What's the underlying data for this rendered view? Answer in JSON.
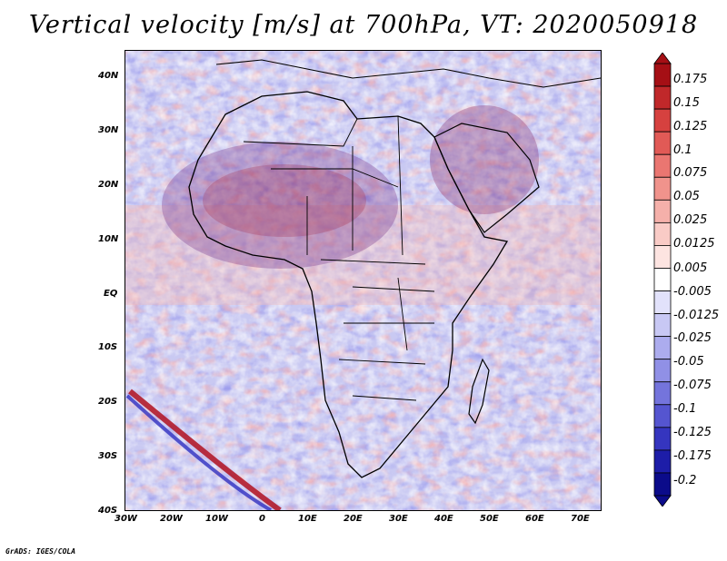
{
  "title": "Vertical velocity [m/s] at 700hPa, VT: 2020050918",
  "credit": "GrADS: IGES/COLA",
  "lat_labels": [
    "40N",
    "30N",
    "20N",
    "10N",
    "EQ",
    "10S",
    "20S",
    "30S",
    "40S"
  ],
  "lon_labels": [
    "30W",
    "20W",
    "10W",
    "0",
    "10E",
    "20E",
    "30E",
    "40E",
    "50E",
    "60E",
    "70E"
  ],
  "colorbar": {
    "labels": [
      "0.175",
      "0.15",
      "0.125",
      "0.1",
      "0.075",
      "0.05",
      "0.025",
      "0.0125",
      "0.005",
      "-0.005",
      "-0.0125",
      "-0.025",
      "-0.05",
      "-0.075",
      "-0.1",
      "-0.125",
      "-0.175",
      "-0.2"
    ],
    "colors": [
      "#a50f15",
      "#c0282a",
      "#d6413f",
      "#e15a56",
      "#ea7671",
      "#f0938c",
      "#f5b0aa",
      "#f9cbc6",
      "#fde4e1",
      "#ffffff",
      "#e2e2fb",
      "#c8c8f4",
      "#acacee",
      "#9090e6",
      "#7474dc",
      "#5555d0",
      "#3535bf",
      "#1d1da8",
      "#0b0b8a"
    ]
  },
  "legend_colors": {
    "positive": "#c0282a",
    "negative": "#3535bf",
    "land_border": "#000000"
  }
}
